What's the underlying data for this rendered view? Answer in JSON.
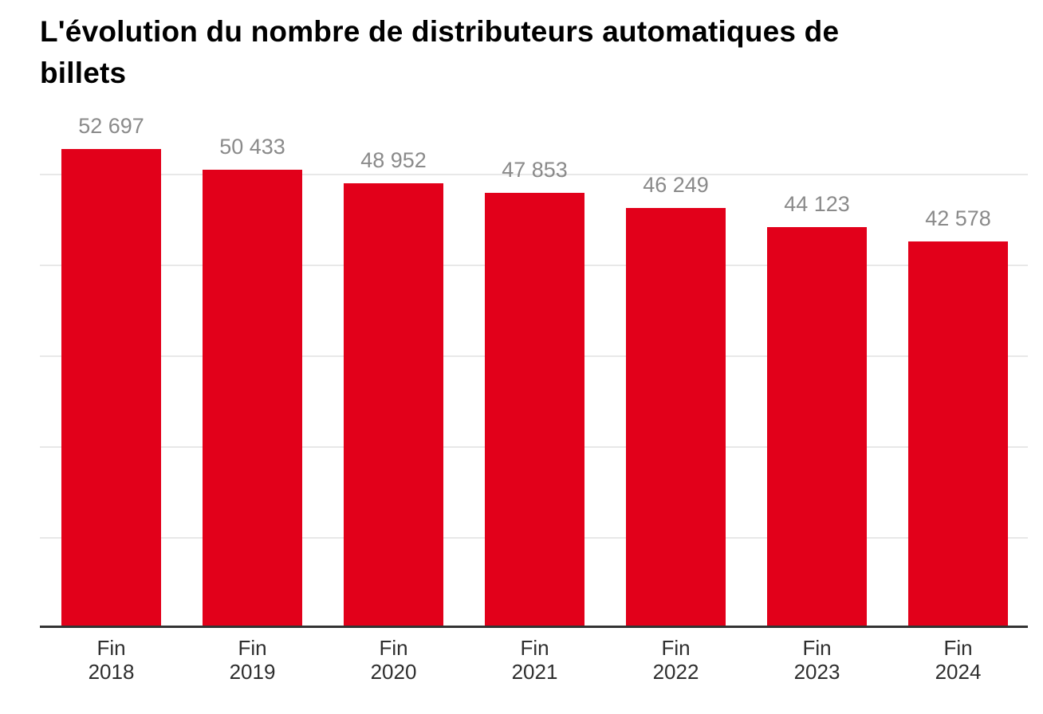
{
  "title": {
    "text": "L'évolution du nombre de distributeurs automatiques de billets",
    "line1": "L'évolution du nombre de distributeurs automatiques de",
    "line2": "billets"
  },
  "chart_data": {
    "type": "bar",
    "title": "L'évolution du nombre de distributeurs automatiques de billets",
    "categories": [
      "Fin 2018",
      "Fin 2019",
      "Fin 2020",
      "Fin 2021",
      "Fin 2022",
      "Fin 2023",
      "Fin 2024"
    ],
    "values": [
      52697,
      50433,
      48952,
      47853,
      46249,
      44123,
      42578
    ],
    "value_labels": [
      "52 697",
      "50 433",
      "48 952",
      "47 853",
      "46 249",
      "44 123",
      "42 578"
    ],
    "xlabel": "",
    "ylabel": "",
    "ylim": [
      0,
      54000
    ],
    "gridline_values": [
      10000,
      20000,
      30000,
      40000,
      50000
    ],
    "grid": "horizontal, unlabeled",
    "legend": "none",
    "value_labels_position": "above bars"
  },
  "colors": {
    "bar": "#e2001a",
    "gridline": "#e8e8e8",
    "axis": "#333333",
    "value_label": "#8a8a8a",
    "tick_label": "#2e2e2e",
    "title": "#000000",
    "background": "#ffffff"
  }
}
